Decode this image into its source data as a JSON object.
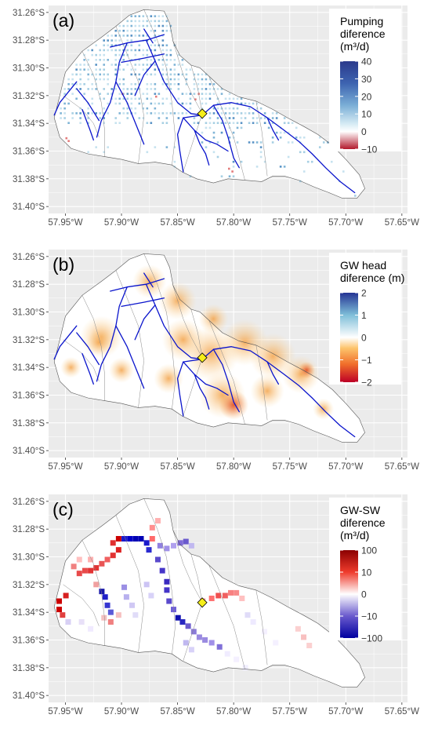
{
  "colors": {
    "panel_bg": "#ebebeb",
    "grid": "#ffffff",
    "river": "#0a14cc",
    "outlet_fill": "#f5ee1a",
    "boundary": "#555555"
  },
  "panels": [
    {
      "label": "(a)",
      "legend": {
        "lines": [
          "Pumping",
          "diference",
          "(m³/d)"
        ],
        "ticks": [
          "40",
          "30",
          "20",
          "10",
          "0",
          "−10"
        ]
      }
    },
    {
      "label": "(b)",
      "legend": {
        "lines": [
          "GW head",
          "diference (m)"
        ],
        "ticks": [
          "2",
          "1",
          "0",
          "−1",
          "−2"
        ]
      }
    },
    {
      "label": "(c)",
      "legend": {
        "lines": [
          "GW-SW",
          "diference",
          "(m³/d)"
        ],
        "ticks": [
          "100",
          "10",
          "0",
          "−10",
          "−100"
        ]
      }
    }
  ],
  "chart_data": [
    {
      "type": "heatmap",
      "title": "(a)",
      "legend_title": "Pumping diference (m³/d)",
      "legend_ticks": [
        40,
        30,
        20,
        10,
        0,
        -10
      ],
      "colorbar_range": [
        -10,
        40
      ],
      "x_ticks": [
        "57.95°W",
        "57.90°W",
        "57.85°W",
        "57.80°W",
        "57.75°W",
        "57.70°W",
        "57.65°W"
      ],
      "y_ticks": [
        "31.26°S",
        "31.28°S",
        "31.30°S",
        "31.32°S",
        "31.34°S",
        "31.36°S",
        "31.38°S",
        "31.40°S"
      ],
      "xlim": [
        -57.965,
        -57.645
      ],
      "ylim": [
        -31.405,
        -31.255
      ],
      "grid": true,
      "legend_position": "top-right",
      "outlet": {
        "lon": -57.828,
        "lat": -31.333
      }
    },
    {
      "type": "heatmap",
      "title": "(b)",
      "legend_title": "GW head diference (m)",
      "legend_ticks": [
        2,
        1,
        0,
        -1,
        -2
      ],
      "colorbar_range": [
        -2,
        2
      ],
      "x_ticks": [
        "57.95°W",
        "57.90°W",
        "57.85°W",
        "57.80°W",
        "57.75°W",
        "57.70°W",
        "57.65°W"
      ],
      "y_ticks": [
        "31.26°S",
        "31.28°S",
        "31.30°S",
        "31.32°S",
        "31.34°S",
        "31.36°S",
        "31.38°S",
        "31.40°S"
      ],
      "xlim": [
        -57.965,
        -57.645
      ],
      "ylim": [
        -31.405,
        -31.255
      ],
      "grid": true,
      "legend_position": "top-right",
      "outlet": {
        "lon": -57.828,
        "lat": -31.333
      }
    },
    {
      "type": "heatmap",
      "title": "(c)",
      "legend_title": "GW-SW diference (m³/d)",
      "legend_ticks": [
        100,
        10,
        0,
        -10,
        -100
      ],
      "colorbar_range": [
        -100,
        100
      ],
      "x_ticks": [
        "57.95°W",
        "57.90°W",
        "57.85°W",
        "57.80°W",
        "57.75°W",
        "57.70°W",
        "57.65°W"
      ],
      "y_ticks": [
        "31.26°S",
        "31.28°S",
        "31.30°S",
        "31.32°S",
        "31.34°S",
        "31.36°S",
        "31.38°S",
        "31.40°S"
      ],
      "xlim": [
        -57.965,
        -57.645
      ],
      "ylim": [
        -31.405,
        -31.255
      ],
      "grid": true,
      "legend_position": "top-right",
      "outlet": {
        "lon": -57.828,
        "lat": -31.333
      }
    }
  ]
}
